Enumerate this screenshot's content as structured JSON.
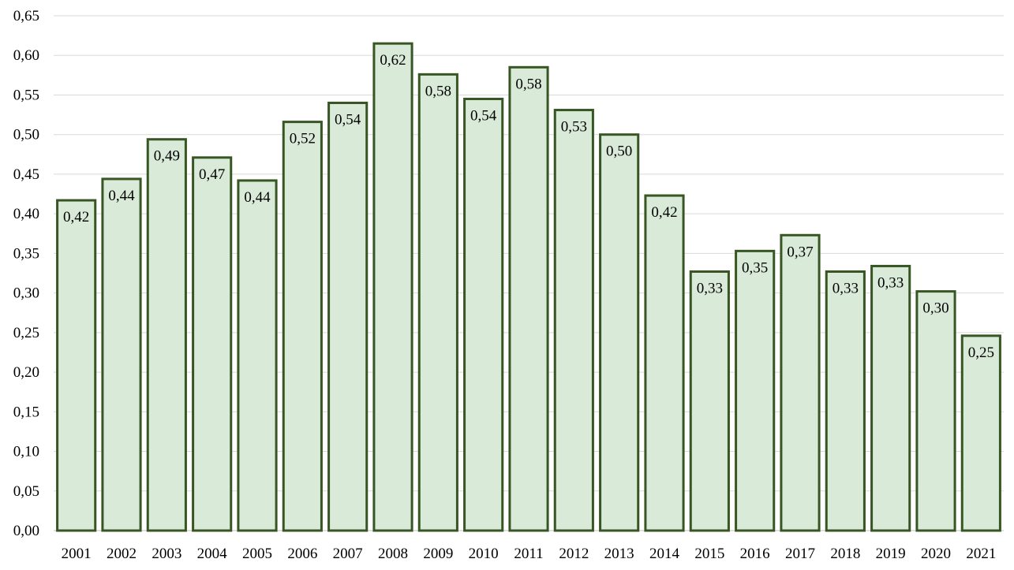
{
  "chart_data": {
    "type": "bar",
    "title": "",
    "xlabel": "",
    "ylabel": "",
    "categories": [
      "2001",
      "2002",
      "2003",
      "2004",
      "2005",
      "2006",
      "2007",
      "2008",
      "2009",
      "2010",
      "2011",
      "2012",
      "2013",
      "2014",
      "2015",
      "2016",
      "2017",
      "2018",
      "2019",
      "2020",
      "2021"
    ],
    "values": [
      0.417,
      0.444,
      0.494,
      0.471,
      0.442,
      0.516,
      0.54,
      0.615,
      0.576,
      0.545,
      0.585,
      0.531,
      0.5,
      0.423,
      0.327,
      0.353,
      0.373,
      0.327,
      0.334,
      0.302,
      0.246
    ],
    "value_labels": [
      "0,42",
      "0,44",
      "0,49",
      "0,47",
      "0,44",
      "0,52",
      "0,54",
      "0,62",
      "0,58",
      "0,54",
      "0,58",
      "0,53",
      "0,50",
      "0,42",
      "0,33",
      "0,35",
      "0,37",
      "0,33",
      "0,33",
      "0,30",
      "0,25"
    ],
    "ylim": [
      0,
      0.65
    ],
    "yticks": [
      0.0,
      0.05,
      0.1,
      0.15,
      0.2,
      0.25,
      0.3,
      0.35,
      0.4,
      0.45,
      0.5,
      0.55,
      0.6,
      0.65
    ],
    "ytick_labels": [
      "0,00",
      "0,05",
      "0,10",
      "0,15",
      "0,20",
      "0,25",
      "0,30",
      "0,35",
      "0,40",
      "0,45",
      "0,50",
      "0,55",
      "0,60",
      "0,65"
    ],
    "grid": true,
    "legend": "none",
    "colors": {
      "bar_fill": "#d9ead8",
      "bar_stroke": "#375623",
      "grid": "#d9d9d9",
      "text": "#000000"
    }
  }
}
